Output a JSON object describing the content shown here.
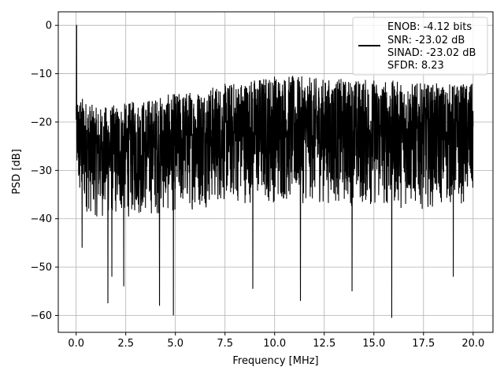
{
  "chart_data": {
    "type": "line",
    "xlabel": "Frequency [MHz]",
    "ylabel": "PSD [dB]",
    "xlim": [
      -0.9,
      21.0
    ],
    "ylim": [
      -63.5,
      2.8
    ],
    "xticks": [
      0.0,
      2.5,
      5.0,
      7.5,
      10.0,
      12.5,
      15.0,
      17.5,
      20.0
    ],
    "xtick_labels": [
      "0.0",
      "2.5",
      "5.0",
      "7.5",
      "10.0",
      "12.5",
      "15.0",
      "17.5",
      "20.0"
    ],
    "yticks": [
      0,
      -10,
      -20,
      -30,
      -40,
      -50,
      -60
    ],
    "ytick_labels": [
      "0",
      "−10",
      "−20",
      "−30",
      "−40",
      "−50",
      "−60"
    ],
    "grid": true,
    "legend_position": "top-right",
    "series": [
      {
        "color": "#000000",
        "x_range": [
          0.0,
          20.0
        ],
        "peak": {
          "x": 0.02,
          "y": 0.0
        },
        "envelope_upper": [
          [
            0.1,
            -14
          ],
          [
            1,
            -17
          ],
          [
            2.5,
            -16
          ],
          [
            5,
            -14
          ],
          [
            7.5,
            -12
          ],
          [
            10,
            -10
          ],
          [
            12.5,
            -11
          ],
          [
            15,
            -11
          ],
          [
            17.5,
            -12
          ],
          [
            20,
            -12
          ]
        ],
        "envelope_lower": [
          [
            0.1,
            -38
          ],
          [
            1,
            -40
          ],
          [
            2.5,
            -40
          ],
          [
            5,
            -39
          ],
          [
            7.5,
            -37
          ],
          [
            10,
            -37
          ],
          [
            12.5,
            -37
          ],
          [
            15,
            -38
          ],
          [
            17.5,
            -38
          ],
          [
            20,
            -37
          ]
        ],
        "deep_minima": [
          [
            0.3,
            -46
          ],
          [
            1.6,
            -57.5
          ],
          [
            1.8,
            -52
          ],
          [
            2.4,
            -54
          ],
          [
            4.2,
            -58
          ],
          [
            4.9,
            -60
          ],
          [
            8.9,
            -54.5
          ],
          [
            11.3,
            -57
          ],
          [
            13.9,
            -55
          ],
          [
            15.9,
            -60.5
          ],
          [
            19.0,
            -52
          ]
        ]
      }
    ],
    "legend": [
      "ENOB: -4.12 bits",
      "SNR: -23.02 dB",
      "SINAD: -23.02 dB",
      "SFDR: 8.23"
    ]
  }
}
